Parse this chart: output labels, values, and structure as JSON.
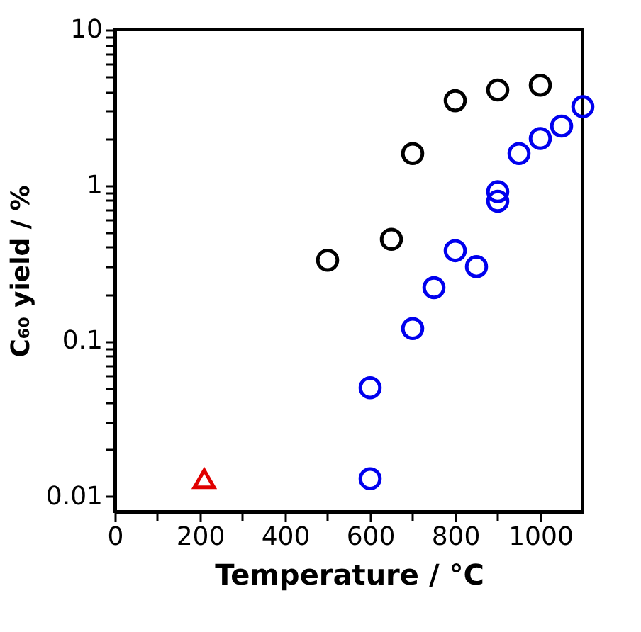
{
  "chart_data": {
    "type": "scatter",
    "xlabel": "Temperature / °C",
    "ylabel": "C₆₀ yield / %",
    "log": "y",
    "grid": false,
    "marker": "circle",
    "xlim": [
      0,
      1100
    ],
    "ylim": [
      0.008,
      10
    ],
    "xticks": [
      0,
      {
        "value": 100,
        "label": null
      },
      200,
      {
        "value": 300,
        "label": null
      },
      400,
      {
        "value": 500,
        "label": null
      },
      600,
      {
        "value": 700,
        "label": null
      },
      800,
      {
        "value": 900,
        "label": null
      },
      1000
    ],
    "yticks": [
      0.01,
      {
        "value": 0.02,
        "label": null
      },
      {
        "value": 0.03,
        "label": null
      },
      {
        "value": 0.04,
        "label": null
      },
      {
        "value": 0.05,
        "label": null
      },
      {
        "value": 0.06,
        "label": null
      },
      {
        "value": 0.07,
        "label": null
      },
      {
        "value": 0.08,
        "label": null
      },
      {
        "value": 0.09,
        "label": null
      },
      0.1,
      {
        "value": 0.2,
        "label": null
      },
      {
        "value": 0.3,
        "label": null
      },
      {
        "value": 0.4,
        "label": null
      },
      {
        "value": 0.5,
        "label": null
      },
      {
        "value": 0.6,
        "label": null
      },
      {
        "value": 0.7,
        "label": null
      },
      {
        "value": 0.8,
        "label": null
      },
      {
        "value": 0.9,
        "label": null
      },
      1,
      {
        "value": 2,
        "label": null
      },
      {
        "value": 3,
        "label": null
      },
      {
        "value": 4,
        "label": null
      },
      {
        "value": 5,
        "label": null
      },
      {
        "value": 6,
        "label": null
      },
      {
        "value": 7,
        "label": null
      },
      {
        "value": 8,
        "label": null
      },
      {
        "value": 9,
        "label": null
      },
      10
    ],
    "series": [
      {
        "color": "#000000",
        "x": [
          500,
          650,
          700,
          800,
          900,
          1000
        ],
        "values": [
          0.33,
          0.45,
          1.6,
          3.5,
          4.1,
          4.4
        ]
      },
      {
        "color": "#0000ee",
        "x": [
          600,
          600,
          700,
          750,
          800,
          850,
          900,
          900,
          950,
          1000,
          1050,
          1100
        ],
        "values": [
          0.013,
          0.05,
          0.12,
          0.22,
          0.38,
          0.3,
          0.79,
          0.91,
          1.6,
          2.0,
          2.4,
          3.2
        ]
      },
      {
        "color": "#e00000",
        "marker": "triangle",
        "x": [
          210
        ],
        "values": [
          0.013
        ]
      }
    ]
  }
}
